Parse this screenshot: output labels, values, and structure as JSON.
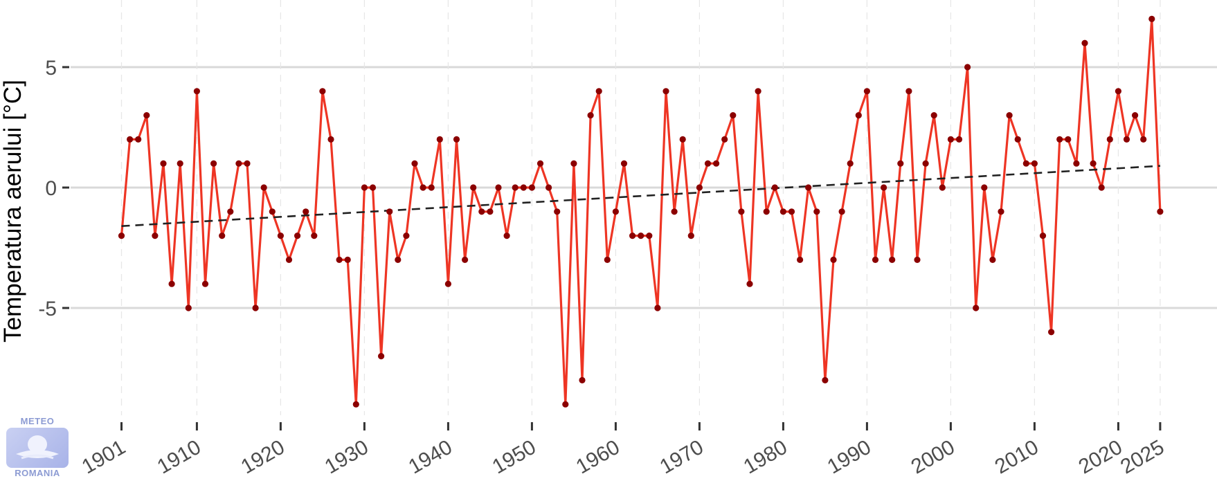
{
  "chart_data": {
    "type": "line",
    "title": "",
    "xlabel": "",
    "ylabel": "Temperatura aerului [°C]",
    "x_tick_labels": [
      "1901",
      "1910",
      "1920",
      "1930",
      "1940",
      "1950",
      "1960",
      "1970",
      "1980",
      "1990",
      "2000",
      "2010",
      "2020",
      "2025"
    ],
    "y_tick_labels": [
      "-5",
      "0",
      "5"
    ],
    "xlim": [
      1901,
      2025
    ],
    "ylim": [
      -9,
      7
    ],
    "grid": {
      "major_horizontal": true,
      "minor_vertical_dashed": true
    },
    "x": [
      1901,
      1902,
      1903,
      1904,
      1905,
      1906,
      1907,
      1908,
      1909,
      1910,
      1911,
      1912,
      1913,
      1914,
      1915,
      1916,
      1917,
      1918,
      1919,
      1920,
      1921,
      1922,
      1923,
      1924,
      1925,
      1926,
      1927,
      1928,
      1929,
      1930,
      1931,
      1932,
      1933,
      1934,
      1935,
      1936,
      1937,
      1938,
      1939,
      1940,
      1941,
      1942,
      1943,
      1944,
      1945,
      1946,
      1947,
      1948,
      1949,
      1950,
      1951,
      1952,
      1953,
      1954,
      1955,
      1956,
      1957,
      1958,
      1959,
      1960,
      1961,
      1962,
      1963,
      1964,
      1965,
      1966,
      1967,
      1968,
      1969,
      1970,
      1971,
      1972,
      1973,
      1974,
      1975,
      1976,
      1977,
      1978,
      1979,
      1980,
      1981,
      1982,
      1983,
      1984,
      1985,
      1986,
      1987,
      1988,
      1989,
      1990,
      1991,
      1992,
      1993,
      1994,
      1995,
      1996,
      1997,
      1998,
      1999,
      2000,
      2001,
      2002,
      2003,
      2004,
      2005,
      2006,
      2007,
      2008,
      2009,
      2010,
      2011,
      2012,
      2013,
      2014,
      2015,
      2016,
      2017,
      2018,
      2019,
      2020,
      2021,
      2022,
      2023,
      2024,
      2025
    ],
    "series": [
      {
        "values": [
          -2,
          2,
          2,
          3,
          -2,
          1,
          -4,
          1,
          -5,
          4,
          -4,
          1,
          -2,
          -1,
          1,
          1,
          -5,
          0,
          -1,
          -2,
          -3,
          -2,
          -1,
          -2,
          4,
          2,
          -3,
          -3,
          -9,
          0,
          0,
          -7,
          -1,
          -3,
          -2,
          1,
          0,
          0,
          2,
          -4,
          2,
          -3,
          0,
          -1,
          -1,
          0,
          -2,
          0,
          0,
          0,
          1,
          0,
          -1,
          -9,
          1,
          -8,
          3,
          4,
          -3,
          -1,
          1,
          -2,
          -2,
          -2,
          -5,
          4,
          -1,
          2,
          -2,
          0,
          1,
          1,
          2,
          3,
          -1,
          -4,
          4,
          -1,
          0,
          -1,
          -1,
          -3,
          0,
          -1,
          -8,
          -3,
          -1,
          1,
          3,
          4,
          -3,
          0,
          -3,
          1,
          4,
          -3,
          1,
          3,
          0,
          2,
          2,
          5,
          -5,
          0,
          -3,
          -1,
          3,
          2,
          1,
          1,
          -2,
          -6,
          2,
          2,
          1,
          6,
          1,
          0,
          2,
          4,
          2,
          3,
          2,
          7,
          -1
        ],
        "color": "#ee3524",
        "marker_color": "#8b0000"
      }
    ],
    "trend_line": {
      "style": "dashed",
      "color": "#222222",
      "start": [
        1901,
        -1.6
      ],
      "end": [
        2025,
        0.9
      ]
    }
  },
  "logo": {
    "top_text": "METEO",
    "bottom_text": "ROMANIA"
  }
}
